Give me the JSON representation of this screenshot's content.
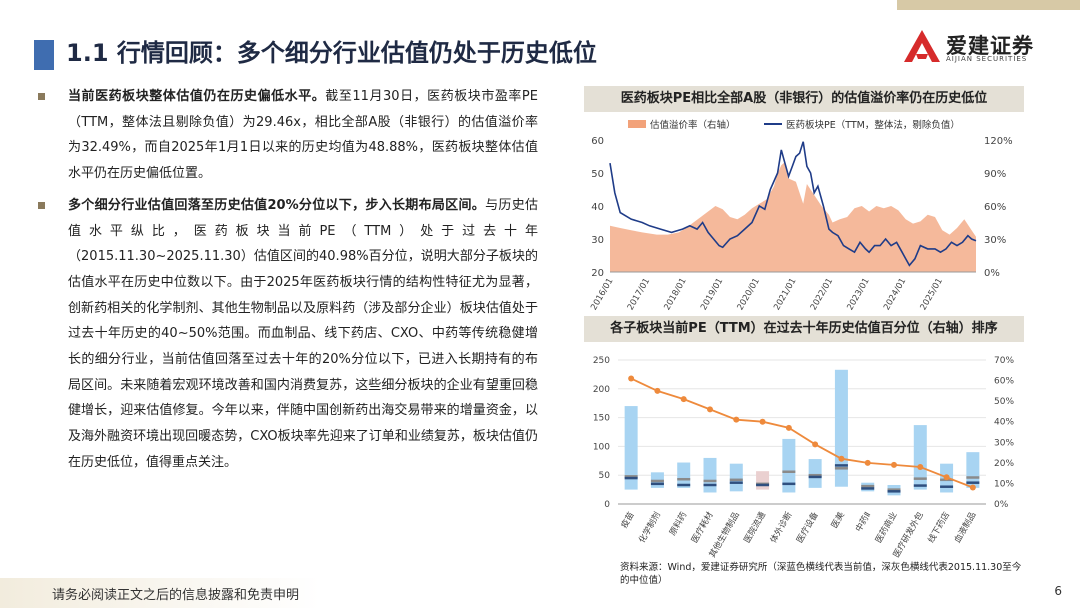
{
  "header": {
    "title": "1.1 行情回顾：多个细分行业估值仍处于历史低位",
    "logo_name": "爱建证券",
    "logo_sub": "AIJIAN SECURITIES",
    "accent": "#3f6db0",
    "logo_color": "#d62b2b"
  },
  "paragraphs": [
    {
      "bold": "当前医药板块整体估值仍在历史偏低水平。",
      "text": "截至11月30日，医药板块市盈率PE（TTM，整体法且剔除负值）为29.46x，相比全部A股（非银行）的估值溢价率为32.49%，而自2025年1月1日以来的历史均值为48.88%，医药板块整体估值水平仍在历史偏低位置。"
    },
    {
      "bold": "多个细分行业估值回落至历史估值20%分位以下，步入长期布局区间。",
      "text": "与历史估值水平纵比，医药板块当前PE（TTM）处于过去十年（2015.11.30~2025.11.30）估值区间的40.98%百分位，说明大部分子板块的估值水平在历史中位数以下。由于2025年医药板块行情的结构性特征尤为显著，创新药相关的化学制剂、其他生物制品以及原料药（涉及部分企业）板块估值处于过去十年历史的40~50%范围。而血制品、线下药店、CXO、中药等传统稳健增长的细分行业，当前估值回落至过去十年的20%分位以下，已进入长期持有的布局区间。未来随着宏观环境改善和国内消费复苏，这些细分板块的企业有望重回稳健增长，迎来估值修复。今年以来，伴随中国创新药出海交易带来的增量资金，以及海外融资环境出现回暖态势，CXO板块率先迎来了订单和业绩复苏，板块估值仍在历史低位，值得重点关注。"
    }
  ],
  "chart1_title": "医药板块PE相比全部A股（非银行）的估值溢价率仍在历史低位",
  "chart2_title": "各子板块当前PE（TTM）在过去十年历史估值百分位（右轴）排序",
  "source": "资料来源：Wind，爱建证券研究所（深蓝色横线代表当前值，深灰色横线代表2015.11.30至今的中位值）",
  "footer": {
    "disclaimer": "请务必阅读正文之后的信息披露和免责申明",
    "page": "6"
  },
  "chart_data": [
    {
      "type": "line",
      "legend": [
        "估值溢价率（右轴）",
        "医药板块PE（TTM，整体法，剔除负值）"
      ],
      "legend_position": "top",
      "x_ticks": [
        "2016/01",
        "2017/01",
        "2018/01",
        "2019/01",
        "2020/01",
        "2021/01",
        "2022/01",
        "2023/01",
        "2024/01",
        "2025/01"
      ],
      "x_range": [
        2015.92,
        2025.92
      ],
      "left_axis": {
        "ticks": [
          20,
          30,
          40,
          50,
          60
        ],
        "ylim": [
          20,
          60
        ]
      },
      "right_axis": {
        "ticks": [
          "0%",
          "30%",
          "60%",
          "90%",
          "120%"
        ],
        "ylim": [
          0,
          120
        ]
      },
      "series": [
        {
          "name": "估值溢价率（右轴）",
          "kind": "area",
          "axis": "right",
          "color": "#f2a27a",
          "x": [
            2015.92,
            2016.2,
            2016.5,
            2016.8,
            2017.0,
            2017.2,
            2017.5,
            2017.8,
            2018.0,
            2018.2,
            2018.4,
            2018.6,
            2018.8,
            2019.0,
            2019.2,
            2019.4,
            2019.6,
            2019.8,
            2020.0,
            2020.2,
            2020.4,
            2020.5,
            2020.6,
            2020.7,
            2020.8,
            2021.0,
            2021.2,
            2021.3,
            2021.5,
            2021.7,
            2021.9,
            2022.0,
            2022.2,
            2022.4,
            2022.6,
            2022.8,
            2023.0,
            2023.2,
            2023.4,
            2023.6,
            2023.8,
            2024.0,
            2024.2,
            2024.4,
            2024.6,
            2024.8,
            2025.0,
            2025.2,
            2025.4,
            2025.6,
            2025.8,
            2025.92
          ],
          "y": [
            42,
            40,
            38,
            36,
            35,
            34,
            34,
            36,
            40,
            45,
            50,
            55,
            60,
            57,
            50,
            48,
            52,
            58,
            62,
            66,
            78,
            90,
            97,
            100,
            85,
            82,
            62,
            80,
            70,
            60,
            52,
            45,
            48,
            50,
            58,
            60,
            55,
            60,
            58,
            60,
            56,
            48,
            44,
            46,
            52,
            50,
            38,
            34,
            40,
            48,
            38,
            32
          ]
        },
        {
          "name": "医药板块PE（TTM，整体法，剔除负值）",
          "kind": "line",
          "axis": "left",
          "color": "#1f3c88",
          "x": [
            2015.92,
            2016.05,
            2016.2,
            2016.5,
            2016.8,
            2017.0,
            2017.3,
            2017.6,
            2017.9,
            2018.1,
            2018.3,
            2018.45,
            2018.6,
            2018.75,
            2018.9,
            2019.0,
            2019.2,
            2019.4,
            2019.6,
            2019.8,
            2020.0,
            2020.15,
            2020.3,
            2020.5,
            2020.6,
            2020.7,
            2020.8,
            2020.9,
            2021.0,
            2021.1,
            2021.2,
            2021.3,
            2021.4,
            2021.5,
            2021.6,
            2021.75,
            2021.9,
            2022.0,
            2022.15,
            2022.3,
            2022.45,
            2022.6,
            2022.75,
            2022.9,
            2023.0,
            2023.15,
            2023.3,
            2023.45,
            2023.6,
            2023.75,
            2023.9,
            2024.0,
            2024.1,
            2024.25,
            2024.4,
            2024.6,
            2024.8,
            2024.95,
            2025.1,
            2025.25,
            2025.4,
            2025.55,
            2025.7,
            2025.8,
            2025.92
          ],
          "y": [
            53,
            44,
            38,
            36,
            35,
            34,
            33,
            32,
            33,
            34,
            33,
            35,
            32,
            30,
            28,
            27.5,
            30,
            31,
            33,
            35,
            40,
            39,
            45,
            50,
            57,
            53,
            49,
            52,
            55,
            56,
            59.5,
            52,
            50,
            44,
            46,
            40,
            33,
            32,
            31,
            28,
            27,
            26,
            29,
            27,
            26,
            28,
            28,
            30,
            28,
            29,
            26,
            24,
            22,
            24,
            28,
            27,
            27,
            26,
            27,
            29,
            28,
            29,
            31,
            30,
            29.5
          ]
        }
      ]
    },
    {
      "type": "bar",
      "title": "各子板块当前PE（TTM）在过去十年历史估值百分位（右轴）排序",
      "categories": [
        "疫苗",
        "化学制剂",
        "原料药",
        "医疗耗材",
        "其他生物制品",
        "医院流通",
        "体外诊断",
        "医疗设备",
        "医美",
        "中药Ⅱ",
        "医药商业",
        "医疗研发外包",
        "线下药店",
        "血液制品"
      ],
      "left_axis": {
        "ticks": [
          0,
          50,
          100,
          150,
          200,
          250
        ],
        "ylim": [
          0,
          250
        ]
      },
      "right_axis": {
        "ticks": [
          "0%",
          "10%",
          "20%",
          "30%",
          "40%",
          "50%",
          "60%",
          "70%"
        ],
        "ylim": [
          0,
          70
        ]
      },
      "pe_range": [
        {
          "low": 25,
          "high": 170
        },
        {
          "low": 28,
          "high": 55
        },
        {
          "low": 28,
          "high": 72
        },
        {
          "low": 20,
          "high": 80
        },
        {
          "low": 22,
          "high": 70
        },
        {
          "low": 25,
          "high": 57
        },
        {
          "low": 20,
          "high": 113
        },
        {
          "low": 28,
          "high": 78
        },
        {
          "low": 30,
          "high": 233
        },
        {
          "low": 22,
          "high": 37
        },
        {
          "low": 15,
          "high": 33
        },
        {
          "low": 25,
          "high": 137
        },
        {
          "low": 20,
          "high": 70
        },
        {
          "low": 28,
          "high": 90
        }
      ],
      "current_pe": [
        45,
        35,
        33,
        33,
        37,
        33,
        35,
        47,
        67,
        27,
        22,
        32,
        30,
        37
      ],
      "median_pe": [
        48,
        40,
        43,
        40,
        42,
        35,
        56,
        50,
        62,
        31,
        25,
        44,
        42,
        46
      ],
      "percentile": [
        61,
        55,
        51,
        46,
        41,
        40,
        37,
        29,
        22,
        20,
        19,
        18,
        13,
        8
      ]
    }
  ]
}
